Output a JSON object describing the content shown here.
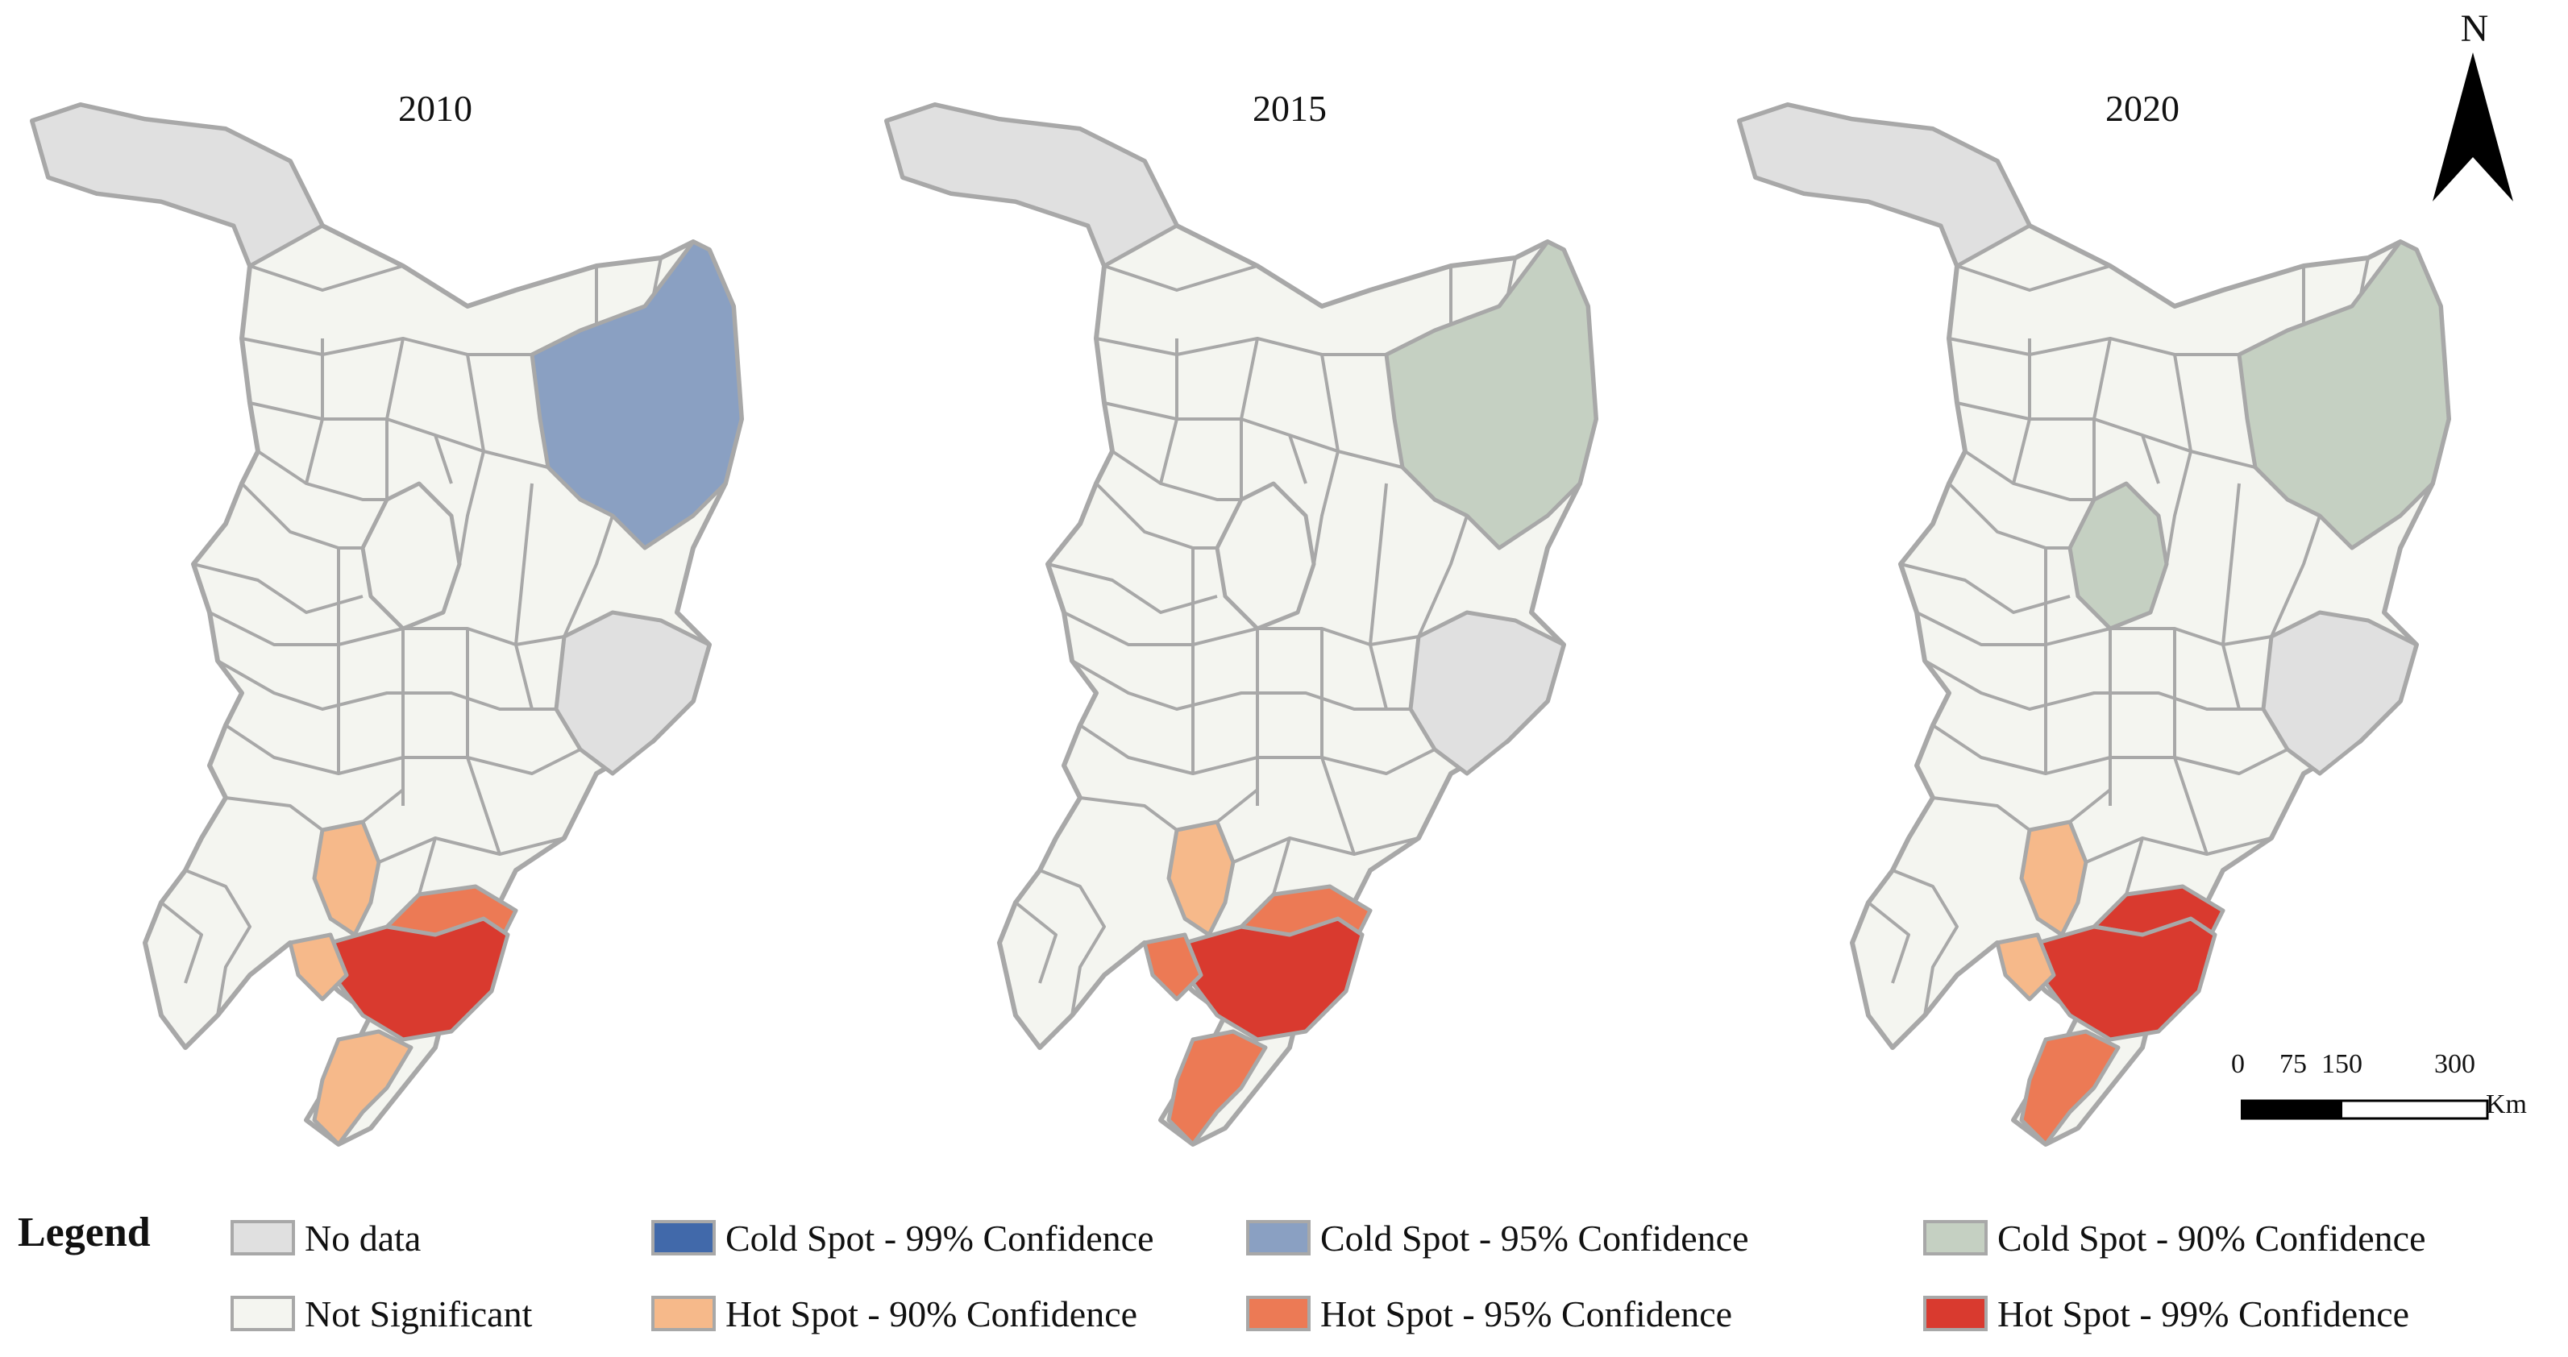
{
  "colors": {
    "no_data": "#e0e0e0",
    "not_significant": "#f4f5f0",
    "cold_99": "#4169aa",
    "cold_95": "#8aa0c2",
    "cold_90": "#c5d0c2",
    "hot_90": "#f6b98a",
    "hot_95": "#ec7a55",
    "hot_99": "#d93a2f",
    "border": "#a8a8a8"
  },
  "maps": [
    {
      "title": "2010",
      "north_class": "no_data",
      "east_class": "no_data",
      "northeast_class": "cold_95",
      "lake_class": "not_significant",
      "sw_class": "hot_90",
      "core_class": "hot_99",
      "ring_class": "hot_95",
      "peninsula_class": "hot_90",
      "west_class": "hot_90"
    },
    {
      "title": "2015",
      "north_class": "no_data",
      "east_class": "no_data",
      "northeast_class": "cold_90",
      "lake_class": "not_significant",
      "sw_class": "hot_90",
      "core_class": "hot_99",
      "ring_class": "hot_95",
      "peninsula_class": "hot_95",
      "west_class": "hot_95"
    },
    {
      "title": "2020",
      "north_class": "no_data",
      "east_class": "no_data",
      "northeast_class": "cold_90",
      "lake_class": "cold_90",
      "sw_class": "hot_90",
      "core_class": "hot_99",
      "ring_class": "hot_99",
      "peninsula_class": "hot_95",
      "west_class": "hot_90"
    }
  ],
  "north_arrow": {
    "label": "N"
  },
  "scale_bar": {
    "ticks": [
      "0",
      "75",
      "150",
      "300"
    ],
    "unit": "Km"
  },
  "legend": {
    "title": "Legend",
    "items": [
      {
        "label": "No data",
        "class": "no_data"
      },
      {
        "label": "Cold Spot - 99% Confidence",
        "class": "cold_99"
      },
      {
        "label": "Cold Spot - 95% Confidence",
        "class": "cold_95"
      },
      {
        "label": "Cold Spot - 90% Confidence",
        "class": "cold_90"
      },
      {
        "label": "Not Significant",
        "class": "not_significant"
      },
      {
        "label": "Hot Spot - 90% Confidence",
        "class": "hot_90"
      },
      {
        "label": "Hot Spot - 95% Confidence",
        "class": "hot_95"
      },
      {
        "label": "Hot Spot - 99% Confidence",
        "class": "hot_99"
      }
    ]
  }
}
